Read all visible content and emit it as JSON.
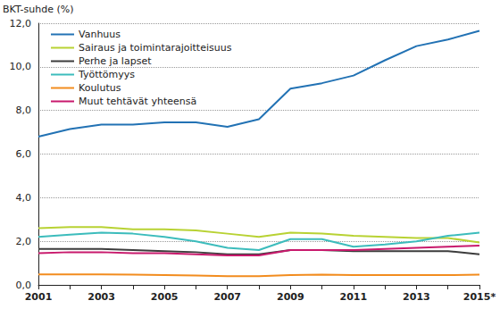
{
  "chart_data": {
    "type": "line",
    "y_label": "BKT-suhde (%)",
    "categories": [
      "2001",
      null,
      "2003",
      null,
      "2005",
      null,
      "2007",
      null,
      "2009",
      null,
      "2011",
      null,
      "2013",
      null,
      "2015*"
    ],
    "series": [
      {
        "name": "Vanhuus",
        "color": "#2272b4",
        "values": [
          6.8,
          7.15,
          7.35,
          7.35,
          7.45,
          7.45,
          7.25,
          7.6,
          9.0,
          9.25,
          9.6,
          10.3,
          10.95,
          11.25,
          11.65
        ]
      },
      {
        "name": "Sairaus ja toimintarajoitteisuus",
        "color": "#b8d233",
        "values": [
          2.6,
          2.65,
          2.65,
          2.55,
          2.55,
          2.5,
          2.35,
          2.2,
          2.4,
          2.35,
          2.25,
          2.2,
          2.15,
          2.15,
          1.95
        ]
      },
      {
        "name": "Perhe ja lapset",
        "color": "#3c3c3c",
        "values": [
          1.65,
          1.65,
          1.65,
          1.6,
          1.55,
          1.5,
          1.4,
          1.4,
          1.6,
          1.6,
          1.55,
          1.55,
          1.55,
          1.55,
          1.4
        ]
      },
      {
        "name": "Työttömyys",
        "color": "#3cbcbc",
        "values": [
          2.2,
          2.3,
          2.4,
          2.35,
          2.2,
          2.0,
          1.7,
          1.6,
          2.1,
          2.1,
          1.75,
          1.85,
          2.0,
          2.25,
          2.4
        ]
      },
      {
        "name": "Koulutus",
        "color": "#f28c1e",
        "values": [
          0.48,
          0.48,
          0.48,
          0.47,
          0.45,
          0.43,
          0.4,
          0.4,
          0.45,
          0.47,
          0.45,
          0.45,
          0.45,
          0.45,
          0.47
        ]
      },
      {
        "name": "Muut tehtävät yhteensä",
        "color": "#c8196c",
        "values": [
          1.45,
          1.5,
          1.5,
          1.45,
          1.45,
          1.4,
          1.35,
          1.35,
          1.6,
          1.6,
          1.6,
          1.65,
          1.7,
          1.75,
          1.8
        ]
      }
    ],
    "ylim": [
      0,
      12
    ],
    "yticks": [
      {
        "value": 0,
        "label": "0,0"
      },
      {
        "value": 2,
        "label": "2,0"
      },
      {
        "value": 4,
        "label": "4,0"
      },
      {
        "value": 6,
        "label": "6,0"
      },
      {
        "value": 8,
        "label": "8,0"
      },
      {
        "value": 10,
        "label": "10,0"
      },
      {
        "value": 12,
        "label": "12,0"
      }
    ],
    "grid": true,
    "legend": "upper left"
  }
}
